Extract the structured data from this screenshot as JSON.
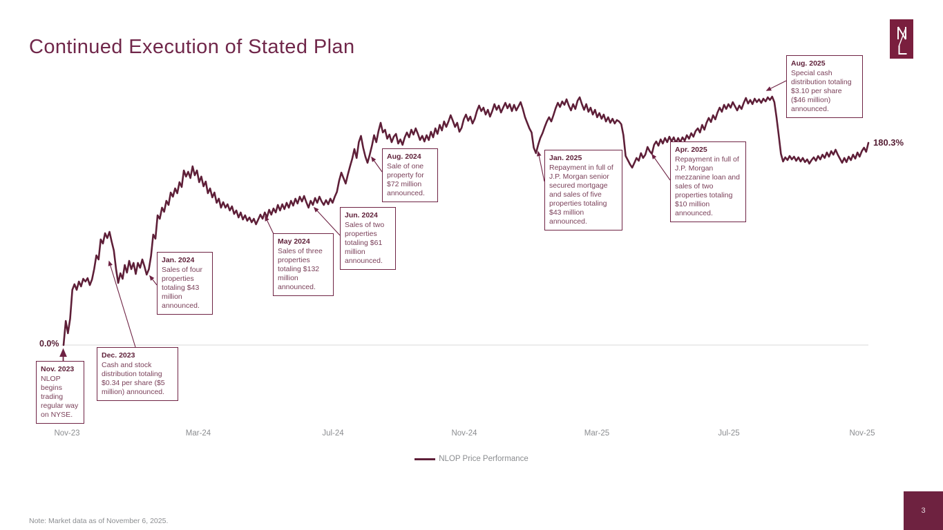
{
  "slide": {
    "title": "Continued Execution of Stated Plan",
    "note": "Note: Market data as of November 6, 2025.",
    "page_number": "3",
    "logo": "NL-monogram"
  },
  "colors": {
    "brand_maroon": "#6E2243",
    "line_maroon": "#5E1F38",
    "title_maroon": "#70274A",
    "gray_text": "#8B8D90",
    "gridline": "#D8D8D8"
  },
  "chart_data": {
    "type": "line",
    "title": "",
    "series": [
      {
        "name": "NLOP Price Performance"
      }
    ],
    "legend": [
      "NLOP Price Performance"
    ],
    "legend_position": "bottom-center",
    "x_tick_labels": [
      "Nov-23",
      "Mar-24",
      "Jul-24",
      "Nov-24",
      "Mar-25",
      "Jul-25",
      "Nov-25"
    ],
    "x_range": [
      "Nov-23",
      "Nov-25"
    ],
    "start_label": "0.0%",
    "end_label": "180.3%",
    "baseline_pct": 0,
    "grid": "single baseline at 0%",
    "values_pct": [
      0,
      21.5,
      10.5,
      23.4,
      49.2,
      54.2,
      49.2,
      56.6,
      52.3,
      59.1,
      56.6,
      59.7,
      53.5,
      58.5,
      67.7,
      80.0,
      76.3,
      94.2,
      90.5,
      99.7,
      95.4,
      100.9,
      92.3,
      84.3,
      67.7,
      55.4,
      64.0,
      59.1,
      71.4,
      64.6,
      75.1,
      67.7,
      73.2,
      63.4,
      73.2,
      68.9,
      76.3,
      70.2,
      62.8,
      67.7,
      79.4,
      98.5,
      94.8,
      115.7,
      112.6,
      122.5,
      118.8,
      128.6,
      124.9,
      136.0,
      132.3,
      139.7,
      135.4,
      145.2,
      140.9,
      155.7,
      150.2,
      154.5,
      148.9,
      159.4,
      151.4,
      155.7,
      145.2,
      150.2,
      141.5,
      145.8,
      135.4,
      139.7,
      131.7,
      136.0,
      126.8,
      130.5,
      122.5,
      127.4,
      122.5,
      125.5,
      120.0,
      123.7,
      116.9,
      120.0,
      113.8,
      118.2,
      112.0,
      115.7,
      110.8,
      113.8,
      109.5,
      112.6,
      107.7,
      112.0,
      116.3,
      112.6,
      118.2,
      113.8,
      120.6,
      116.3,
      121.8,
      118.2,
      124.9,
      120.0,
      125.5,
      121.2,
      126.8,
      122.5,
      128.6,
      124.3,
      130.5,
      126.2,
      132.3,
      128.0,
      132.9,
      127.4,
      122.5,
      128.6,
      124.9,
      131.1,
      126.8,
      132.3,
      128.0,
      124.9,
      129.2,
      125.5,
      130.5,
      126.8,
      132.3,
      136.6,
      146.5,
      153.8,
      148.9,
      144.0,
      152.0,
      159.4,
      166.2,
      174.8,
      166.8,
      180.9,
      186.5,
      176.0,
      168.0,
      162.5,
      169.8,
      177.8,
      187.1,
      180.9,
      190.8,
      198.2,
      189.5,
      192.0,
      184.0,
      187.7,
      180.9,
      185.8,
      188.3,
      179.7,
      183.4,
      178.5,
      185.2,
      189.5,
      185.2,
      192.0,
      187.7,
      193.2,
      188.3,
      182.8,
      186.5,
      181.5,
      187.1,
      182.8,
      190.2,
      185.2,
      193.2,
      188.3,
      196.3,
      191.4,
      199.4,
      194.5,
      199.4,
      204.9,
      200.0,
      194.5,
      198.2,
      190.2,
      193.8,
      201.2,
      205.5,
      200.0,
      203.7,
      197.5,
      201.8,
      208.6,
      213.5,
      208.6,
      211.7,
      205.5,
      209.8,
      203.7,
      208.6,
      214.8,
      209.8,
      213.5,
      207.4,
      211.7,
      216.0,
      211.1,
      214.8,
      208.6,
      214.2,
      209.2,
      212.9,
      216.6,
      210.5,
      203.1,
      198.2,
      193.2,
      189.5,
      176.0,
      171.1,
      178.5,
      184.6,
      188.9,
      194.5,
      199.4,
      203.1,
      199.4,
      204.9,
      211.1,
      216.0,
      212.3,
      217.2,
      214.2,
      219.1,
      213.5,
      209.2,
      214.8,
      210.5,
      217.8,
      220.9,
      214.8,
      209.8,
      214.8,
      208.0,
      211.7,
      205.5,
      209.8,
      203.1,
      206.8,
      201.8,
      205.5,
      199.4,
      203.1,
      198.2,
      201.8,
      197.5,
      200.6,
      199.4,
      196.9,
      187.1,
      168.6,
      164.9,
      161.2,
      158.2,
      162.5,
      166.8,
      164.3,
      171.1,
      166.8,
      169.8,
      176.6,
      172.9,
      170.5,
      178.5,
      181.5,
      177.8,
      183.4,
      179.7,
      184.6,
      180.9,
      185.8,
      181.5,
      185.2,
      180.3,
      184.6,
      180.9,
      185.2,
      182.2,
      187.1,
      184.0,
      188.9,
      185.8,
      190.8,
      193.2,
      189.5,
      196.3,
      192.0,
      198.2,
      202.5,
      198.8,
      204.9,
      201.2,
      207.4,
      211.7,
      208.0,
      214.2,
      210.5,
      214.8,
      211.7,
      216.6,
      212.9,
      209.2,
      213.5,
      210.5,
      216.0,
      220.3,
      215.4,
      218.5,
      214.8,
      219.7,
      216.6,
      219.1,
      216.0,
      219.7,
      217.2,
      220.9,
      218.5,
      221.5,
      216.6,
      203.1,
      187.1,
      170.5,
      163.7,
      167.4,
      164.9,
      168.6,
      165.5,
      168.0,
      164.3,
      167.4,
      163.7,
      166.8,
      163.1,
      165.5,
      161.8,
      164.9,
      167.4,
      164.3,
      168.6,
      165.5,
      169.8,
      166.8,
      171.7,
      168.0,
      172.9,
      169.8,
      174.2,
      169.8,
      166.2,
      162.5,
      166.8,
      163.1,
      168.0,
      164.9,
      169.8,
      166.2,
      171.7,
      168.0,
      172.9,
      176.0,
      172.3,
      180.3
    ],
    "annotations": [
      {
        "date": "Nov. 2023",
        "text": "NLOP begins trading regular way on NYSE."
      },
      {
        "date": "Dec. 2023",
        "text": "Cash and stock distribution totaling $0.34 per share ($5 million) announced."
      },
      {
        "date": "Jan. 2024",
        "text": "Sales of four properties totaling $43 million announced."
      },
      {
        "date": "May 2024",
        "text": "Sales of three properties totaling $132 million announced."
      },
      {
        "date": "Jun. 2024",
        "text": "Sales of two properties totaling $61 million announced."
      },
      {
        "date": "Aug. 2024",
        "text": "Sale of one property for $72 million announced."
      },
      {
        "date": "Jan. 2025",
        "text": "Repayment in full of J.P. Morgan senior secured mortgage and sales of five properties totaling $43 million announced."
      },
      {
        "date": "Apr. 2025",
        "text": "Repayment in full of J.P. Morgan mezzanine loan and sales of two properties totaling $10 million announced."
      },
      {
        "date": "Aug. 2025",
        "text": "Special cash distribution totaling $3.10 per share ($46 million) announced."
      }
    ]
  }
}
